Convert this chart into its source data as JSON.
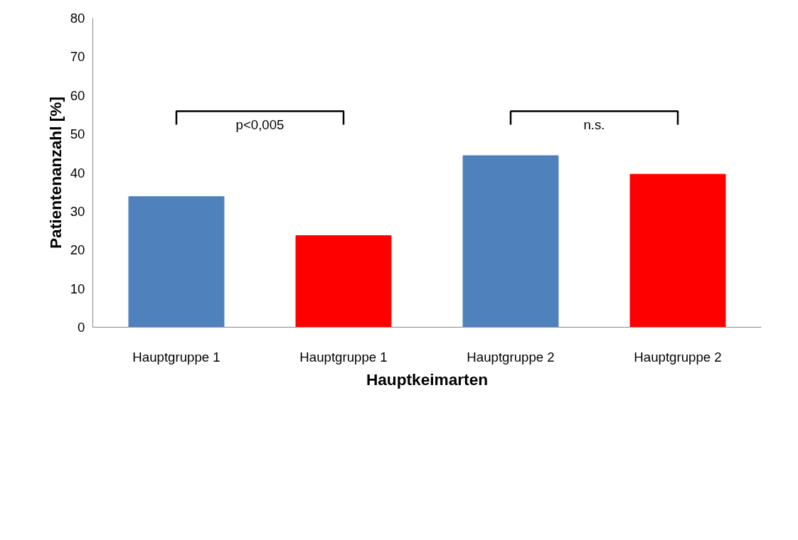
{
  "chart_data": {
    "type": "bar",
    "xlabel": "Hauptkeimarten",
    "ylabel": "Patientenanzahl [%]",
    "categories": [
      "Hauptgruppe 1",
      "Hauptgruppe 1",
      "Hauptgruppe 2",
      "Hauptgruppe 2"
    ],
    "values": [
      33.8,
      23.7,
      44.4,
      39.6
    ],
    "colors": [
      "#4f81bd",
      "#ff0000",
      "#4f81bd",
      "#ff0000"
    ],
    "ylim": [
      0,
      80
    ],
    "yticks": [
      0,
      10,
      20,
      30,
      40,
      50,
      60,
      70,
      80
    ],
    "grid": false,
    "annotations": [
      "p<0,005",
      "n.s."
    ]
  }
}
